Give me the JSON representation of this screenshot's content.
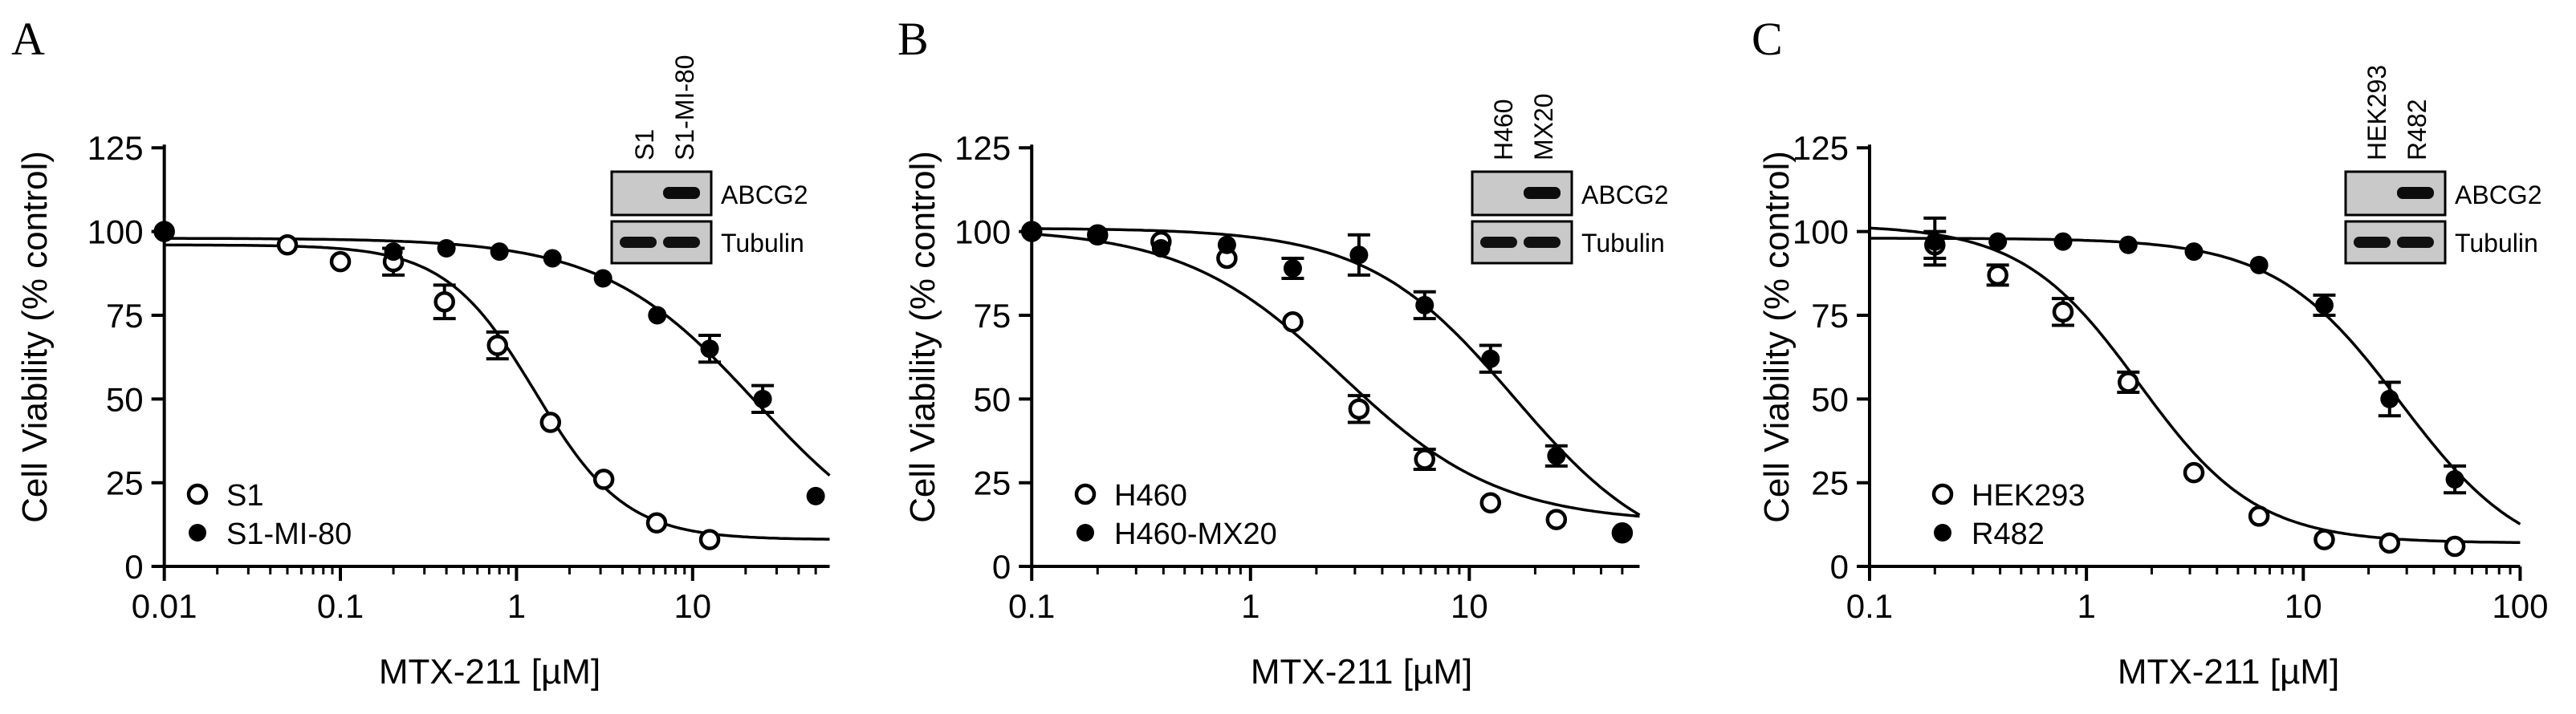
{
  "chart_data": [
    {
      "type": "scatter",
      "panel_label": "A",
      "xlabel": "MTX-211 [µM]",
      "ylabel": "Cell Viability (% control)",
      "xscale": "log",
      "xlim": [
        0.01,
        60
      ],
      "ylim": [
        0,
        125
      ],
      "xticks": [
        0.01,
        0.1,
        1,
        10
      ],
      "xtick_labels": [
        "0.01",
        "0.1",
        "1",
        "10"
      ],
      "yticks": [
        0,
        25,
        50,
        75,
        100,
        125
      ],
      "ytick_labels": [
        "0",
        "25",
        "50",
        "75",
        "100",
        "125"
      ],
      "grid": false,
      "legend_position": "bottom-left",
      "series": [
        {
          "name": "S1",
          "marker": "open-circle",
          "points": [
            {
              "x": 0.01,
              "y": 100,
              "err": 0
            },
            {
              "x": 0.05,
              "y": 96,
              "err": 0
            },
            {
              "x": 0.1,
              "y": 91,
              "err": 0
            },
            {
              "x": 0.2,
              "y": 91,
              "err": 4
            },
            {
              "x": 0.39,
              "y": 79,
              "err": 5
            },
            {
              "x": 0.78,
              "y": 66,
              "err": 4
            },
            {
              "x": 1.56,
              "y": 43,
              "err": 0
            },
            {
              "x": 3.13,
              "y": 26,
              "err": 0
            },
            {
              "x": 6.25,
              "y": 13,
              "err": 0
            },
            {
              "x": 12.5,
              "y": 8,
              "err": 0
            }
          ],
          "curve": {
            "top": 96,
            "bottom": 8,
            "ec50": 1.28,
            "hill": 1.7
          }
        },
        {
          "name": "S1-MI-80",
          "marker": "filled-circle",
          "points": [
            {
              "x": 0.01,
              "y": 100,
              "err": 0
            },
            {
              "x": 0.2,
              "y": 94,
              "err": 0
            },
            {
              "x": 0.4,
              "y": 95,
              "err": 0
            },
            {
              "x": 0.8,
              "y": 94,
              "err": 0
            },
            {
              "x": 1.6,
              "y": 92,
              "err": 0
            },
            {
              "x": 3.1,
              "y": 86,
              "err": 0
            },
            {
              "x": 6.3,
              "y": 75,
              "err": 0
            },
            {
              "x": 12.5,
              "y": 65,
              "err": 4
            },
            {
              "x": 25,
              "y": 50,
              "err": 4
            },
            {
              "x": 50,
              "y": 21,
              "err": 0
            }
          ],
          "curve": {
            "top": 98,
            "bottom": 0,
            "ec50": 23,
            "hill": 1.0
          }
        }
      ],
      "inset": {
        "lanes": [
          "S1",
          "S1-MI-80"
        ],
        "rows": [
          "ABCG2",
          "Tubulin"
        ]
      }
    },
    {
      "type": "scatter",
      "panel_label": "B",
      "xlabel": "MTX-211 [µM]",
      "ylabel": "Cell Viability (% control)",
      "xscale": "log",
      "xlim": [
        0.1,
        60
      ],
      "ylim": [
        0,
        125
      ],
      "xticks": [
        0.1,
        1,
        10
      ],
      "xtick_labels": [
        "0.1",
        "1",
        "10"
      ],
      "yticks": [
        0,
        25,
        50,
        75,
        100,
        125
      ],
      "ytick_labels": [
        "0",
        "25",
        "50",
        "75",
        "100",
        "125"
      ],
      "grid": false,
      "legend_position": "bottom-left",
      "series": [
        {
          "name": "H460",
          "marker": "open-circle",
          "points": [
            {
              "x": 0.1,
              "y": 100,
              "err": 0
            },
            {
              "x": 0.2,
              "y": 99,
              "err": 0
            },
            {
              "x": 0.39,
              "y": 97,
              "err": 0
            },
            {
              "x": 0.78,
              "y": 92,
              "err": 0
            },
            {
              "x": 1.56,
              "y": 73,
              "err": 0
            },
            {
              "x": 3.13,
              "y": 47,
              "err": 4
            },
            {
              "x": 6.25,
              "y": 32,
              "err": 3
            },
            {
              "x": 12.5,
              "y": 19,
              "err": 0
            },
            {
              "x": 25,
              "y": 14,
              "err": 0
            },
            {
              "x": 50,
              "y": 10,
              "err": 0
            }
          ],
          "curve": {
            "top": 101,
            "bottom": 13,
            "ec50": 2.6,
            "hill": 1.2
          }
        },
        {
          "name": "H460-MX20",
          "marker": "filled-circle",
          "points": [
            {
              "x": 0.1,
              "y": 100,
              "err": 0
            },
            {
              "x": 0.2,
              "y": 99,
              "err": 0
            },
            {
              "x": 0.39,
              "y": 95,
              "err": 0
            },
            {
              "x": 0.78,
              "y": 96,
              "err": 0
            },
            {
              "x": 1.56,
              "y": 89,
              "err": 3
            },
            {
              "x": 3.13,
              "y": 93,
              "err": 6
            },
            {
              "x": 6.25,
              "y": 78,
              "err": 4
            },
            {
              "x": 12.5,
              "y": 62,
              "err": 4
            },
            {
              "x": 25,
              "y": 33,
              "err": 3
            },
            {
              "x": 50,
              "y": 10,
              "err": 0
            }
          ],
          "curve": {
            "top": 101,
            "bottom": 0,
            "ec50": 16,
            "hill": 1.3
          }
        }
      ],
      "inset": {
        "lanes": [
          "H460",
          "MX20"
        ],
        "rows": [
          "ABCG2",
          "Tubulin"
        ]
      }
    },
    {
      "type": "scatter",
      "panel_label": "C",
      "xlabel": "MTX-211 [µM]",
      "ylabel": "Cell Viability (% control)",
      "xscale": "log",
      "xlim": [
        0.1,
        100
      ],
      "ylim": [
        0,
        125
      ],
      "xticks": [
        0.1,
        1,
        10,
        100
      ],
      "xtick_labels": [
        "0.1",
        "1",
        "10",
        "100"
      ],
      "yticks": [
        0,
        25,
        50,
        75,
        100,
        125
      ],
      "ytick_labels": [
        "0",
        "25",
        "50",
        "75",
        "100",
        "125"
      ],
      "grid": false,
      "legend_position": "bottom-left",
      "series": [
        {
          "name": "HEK293",
          "marker": "open-circle",
          "points": [
            {
              "x": 0.2,
              "y": 96,
              "err": 4
            },
            {
              "x": 0.39,
              "y": 87,
              "err": 3
            },
            {
              "x": 0.78,
              "y": 76,
              "err": 4
            },
            {
              "x": 1.56,
              "y": 55,
              "err": 3
            },
            {
              "x": 3.13,
              "y": 28,
              "err": 0
            },
            {
              "x": 6.25,
              "y": 15,
              "err": 0
            },
            {
              "x": 12.5,
              "y": 8,
              "err": 0
            },
            {
              "x": 25,
              "y": 7,
              "err": 0
            },
            {
              "x": 50,
              "y": 6,
              "err": 0
            }
          ],
          "curve": {
            "top": 102,
            "bottom": 7,
            "ec50": 1.75,
            "hill": 1.6
          }
        },
        {
          "name": "R482",
          "marker": "filled-circle",
          "points": [
            {
              "x": 0.2,
              "y": 97,
              "err": 7
            },
            {
              "x": 0.39,
              "y": 97,
              "err": 0
            },
            {
              "x": 0.78,
              "y": 97,
              "err": 0
            },
            {
              "x": 1.56,
              "y": 96,
              "err": 0
            },
            {
              "x": 3.13,
              "y": 94,
              "err": 0
            },
            {
              "x": 6.25,
              "y": 90,
              "err": 0
            },
            {
              "x": 12.5,
              "y": 78,
              "err": 3
            },
            {
              "x": 25,
              "y": 50,
              "err": 5
            },
            {
              "x": 50,
              "y": 26,
              "err": 4
            }
          ],
          "curve": {
            "top": 98,
            "bottom": 0,
            "ec50": 28,
            "hill": 1.5
          }
        }
      ],
      "inset": {
        "lanes": [
          "HEK293",
          "R482"
        ],
        "rows": [
          "ABCG2",
          "Tubulin"
        ]
      }
    }
  ]
}
